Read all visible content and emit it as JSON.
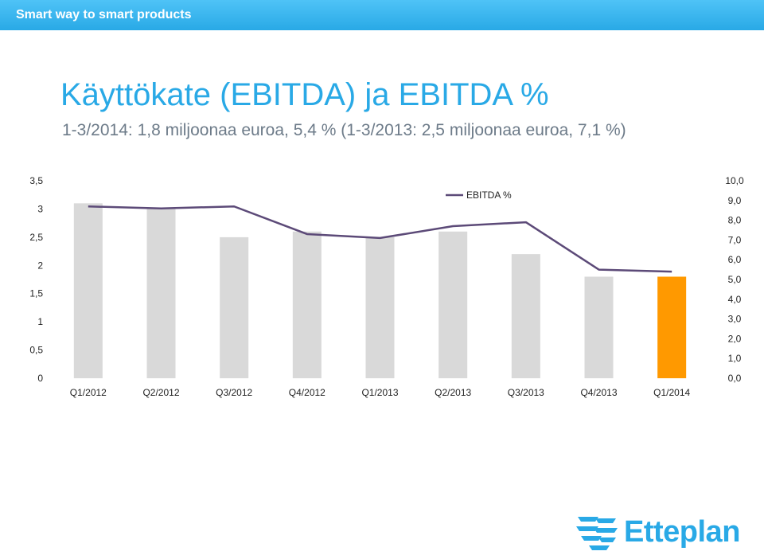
{
  "header": {
    "tagline": "Smart way to smart products"
  },
  "slide": {
    "title": "Käyttökate (EBITDA) ja EBITDA %",
    "subtitle": "1-3/2014: 1,8 miljoonaa euroa, 5,4 % (1-3/2013: 2,5 miljoonaa euroa, 7,1 %)"
  },
  "logo": {
    "text": "Etteplan"
  },
  "chart_data": {
    "type": "bar",
    "categories": [
      "Q1/2012",
      "Q2/2012",
      "Q3/2012",
      "Q4/2012",
      "Q1/2013",
      "Q2/2013",
      "Q3/2013",
      "Q4/2013",
      "Q1/2014"
    ],
    "series": [
      {
        "axis": "left",
        "type": "bar",
        "values": [
          3.1,
          3.0,
          2.5,
          2.6,
          2.5,
          2.6,
          2.2,
          1.8,
          1.8
        ],
        "colors": [
          "#d9d9d9",
          "#d9d9d9",
          "#d9d9d9",
          "#d9d9d9",
          "#d9d9d9",
          "#d9d9d9",
          "#d9d9d9",
          "#d9d9d9",
          "#ff9900"
        ]
      },
      {
        "name": "EBITDA %",
        "axis": "right",
        "type": "line",
        "color": "#5c4a78",
        "values": [
          8.7,
          8.6,
          8.7,
          7.3,
          7.1,
          7.7,
          7.9,
          5.5,
          5.4
        ]
      }
    ],
    "y_left": {
      "min": 0,
      "max": 3.5,
      "ticks": [
        "0",
        "0,5",
        "1",
        "1,5",
        "2",
        "2,5",
        "3",
        "3,5"
      ]
    },
    "y_right": {
      "min": 0,
      "max": 10,
      "ticks": [
        "0,0",
        "1,0",
        "2,0",
        "3,0",
        "4,0",
        "5,0",
        "6,0",
        "7,0",
        "8,0",
        "9,0",
        "10,0"
      ]
    },
    "legend": {
      "position": "top-center"
    },
    "grid": false
  }
}
